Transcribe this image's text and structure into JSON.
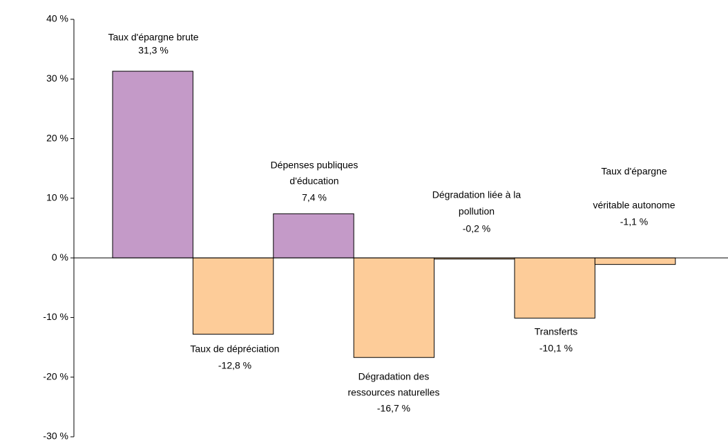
{
  "chart_data": {
    "type": "bar",
    "categories": [
      [
        "Taux d'épargne brute"
      ],
      [
        "Taux de dépréciation"
      ],
      [
        "Dépenses publiques",
        "d'éducation"
      ],
      [
        "Dégradation des",
        "ressources naturelles"
      ],
      [
        "Dégradation liée à la",
        "pollution"
      ],
      [
        "Transferts"
      ],
      [
        "Taux d'épargne",
        "véritable autonome"
      ]
    ],
    "values": [
      31.3,
      -12.8,
      7.4,
      -16.7,
      -0.2,
      -10.1,
      -1.1
    ],
    "value_labels": [
      "31,3 %",
      "-12,8 %",
      "7,4 %",
      "-16,7 %",
      "-0,2 %",
      "-10,1 %",
      "-1,1 %"
    ],
    "colors": [
      "#c49ac8",
      "#fdcc99",
      "#c49ac8",
      "#fdcc99",
      "#fdcc99",
      "#fdcc99",
      "#fdcc99"
    ],
    "ylim": [
      -30,
      40
    ],
    "yticks": [
      {
        "value": -30,
        "label": "-30 %"
      },
      {
        "value": -20,
        "label": "-20 %"
      },
      {
        "value": -10,
        "label": "-10 %"
      },
      {
        "value": 0,
        "label": "0 %"
      },
      {
        "value": 10,
        "label": "10 %"
      },
      {
        "value": 20,
        "label": "20 %"
      },
      {
        "value": 30,
        "label": "30 %"
      },
      {
        "value": 40,
        "label": "40 %"
      }
    ]
  }
}
